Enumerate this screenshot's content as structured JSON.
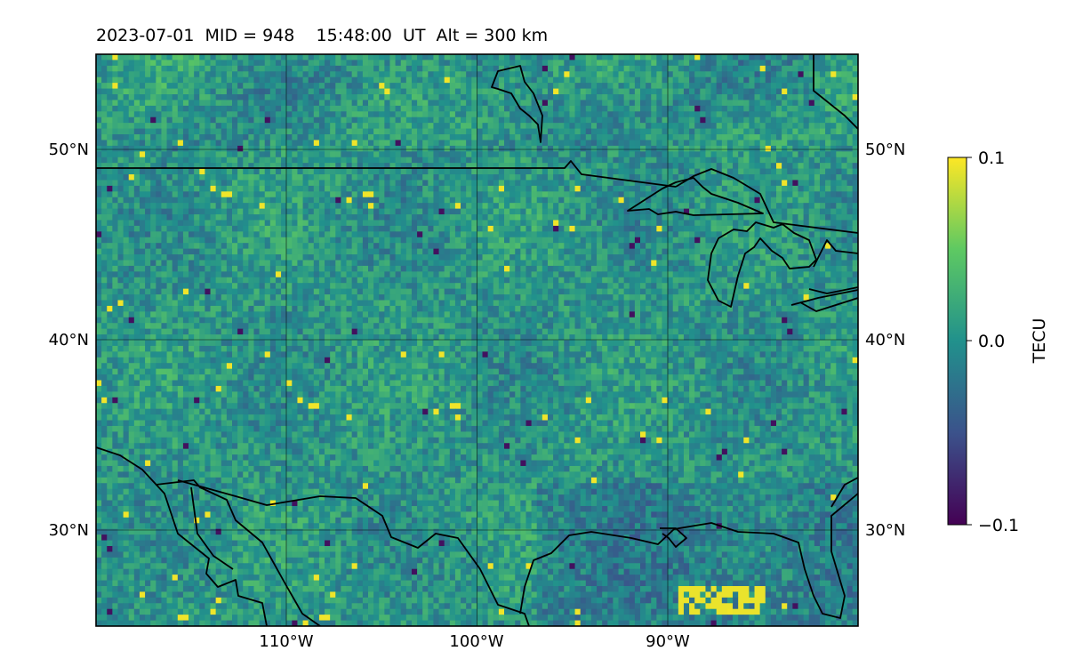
{
  "title": "2023-07-01  MID = 948    15:48:00  UT  Alt = 300 km",
  "map": {
    "lon_range": [
      -120,
      -80
    ],
    "lat_range": [
      25,
      55
    ],
    "lon_ticks": [
      {
        "value": -110,
        "label": "110°W"
      },
      {
        "value": -100,
        "label": "100°W"
      },
      {
        "value": -90,
        "label": "90°W"
      }
    ],
    "lat_ticks": [
      {
        "value": 30,
        "label": "30°N"
      },
      {
        "value": 40,
        "label": "40°N"
      },
      {
        "value": 50,
        "label": "50°N"
      }
    ],
    "colormap": "viridis",
    "colormap_stops": [
      "#440154",
      "#3b528b",
      "#21918c",
      "#5ec962",
      "#fde725"
    ],
    "coastline_color": "#000000",
    "gridline_color": "#000000"
  },
  "colorbar": {
    "label": "TECU",
    "ticks": [
      {
        "value": 0.1,
        "label": "0.1"
      },
      {
        "value": 0.0,
        "label": "0.0"
      },
      {
        "value": -0.1,
        "label": "−0.1"
      }
    ],
    "vmin": -0.1,
    "vmax": 0.1
  }
}
